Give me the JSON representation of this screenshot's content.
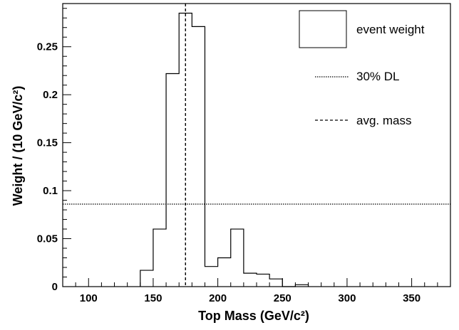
{
  "chart_data": {
    "type": "histogram",
    "xlabel": "Top Mass (GeV/c²)",
    "ylabel": "Weight / (10 GeV/c²)",
    "xlim": [
      80,
      380
    ],
    "ylim": [
      0,
      0.295
    ],
    "x_ticks": [
      "100",
      "150",
      "200",
      "250",
      "300",
      "350"
    ],
    "y_ticks": [
      "0",
      "0.05",
      "0.1",
      "0.15",
      "0.2",
      "0.25"
    ],
    "bin_width": 10,
    "bins": [
      {
        "x": 140,
        "y": 0.017
      },
      {
        "x": 150,
        "y": 0.06
      },
      {
        "x": 160,
        "y": 0.222
      },
      {
        "x": 170,
        "y": 0.285
      },
      {
        "x": 180,
        "y": 0.271
      },
      {
        "x": 190,
        "y": 0.021
      },
      {
        "x": 200,
        "y": 0.03
      },
      {
        "x": 210,
        "y": 0.06
      },
      {
        "x": 220,
        "y": 0.014
      },
      {
        "x": 230,
        "y": 0.013
      },
      {
        "x": 240,
        "y": 0.008
      },
      {
        "x": 250,
        "y": 0.0
      },
      {
        "x": 260,
        "y": 0.002
      }
    ],
    "series": [
      {
        "name": "event weight",
        "style": "histogram"
      },
      {
        "name": "30% DL",
        "style": "dotted",
        "y": 0.086
      },
      {
        "name": "avg. mass",
        "style": "dashed",
        "x": 175
      }
    ],
    "legend": {
      "placement": "top-right"
    },
    "grid": false,
    "colors": {
      "line": "#000000",
      "background": "#ffffff"
    }
  }
}
